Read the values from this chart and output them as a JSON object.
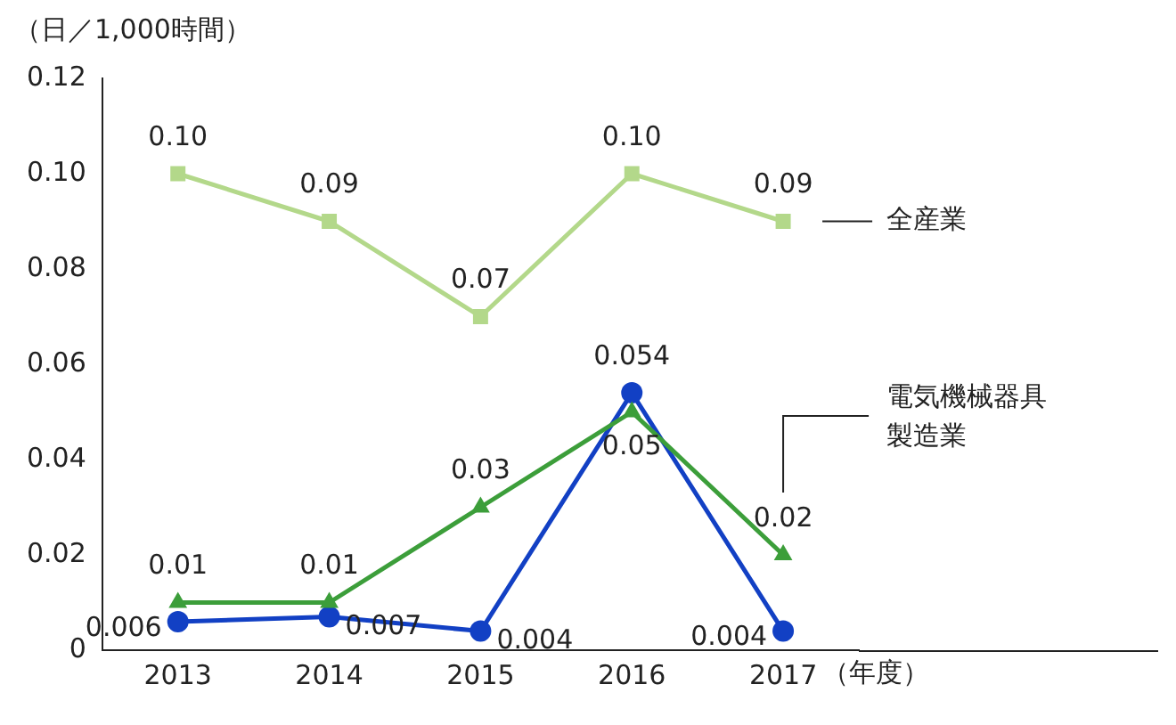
{
  "chart_data": {
    "type": "line",
    "ylabel": "（日／1,000時間）",
    "xlabel": "（年度）",
    "categories": [
      "2013",
      "2014",
      "2015",
      "2016",
      "2017"
    ],
    "ylim": [
      0,
      0.12
    ],
    "yticks": [
      0,
      0.02,
      0.04,
      0.06,
      0.08,
      {
        "value": 0.1,
        "label": "0.10"
      },
      0.12
    ],
    "line_style": "solid",
    "series": [
      {
        "name": "全産業",
        "color": "#b3d88a",
        "marker": "square",
        "values": [
          0.1,
          0.09,
          0.07,
          0.1,
          0.09
        ],
        "value_labels": [
          "0.10",
          "0.09",
          "0.07",
          "0.10",
          "0.09"
        ]
      },
      {
        "name": "電気機械器具製造業",
        "color": "#3c9e3a",
        "marker": "triangle",
        "values": [
          0.01,
          0.01,
          0.03,
          0.05,
          0.02
        ],
        "value_labels": [
          "0.01",
          "0.01",
          "0.03",
          "0.05",
          "0.02"
        ]
      },
      {
        "color": "#1240c4",
        "marker": "circle",
        "values": [
          0.006,
          0.007,
          0.004,
          0.054,
          0.004
        ],
        "value_labels": [
          "0.006",
          "0.007",
          "0.004",
          "0.054",
          "0.004"
        ]
      }
    ]
  }
}
